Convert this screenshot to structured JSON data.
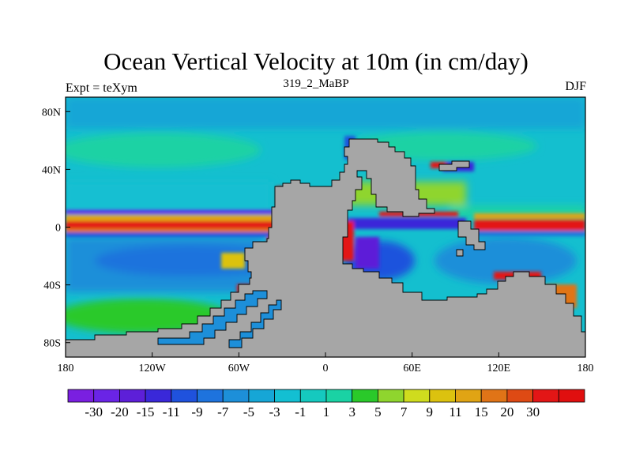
{
  "title": "Ocean Vertical Velocity at 10m (in cm/day)",
  "left_label": "Expt = teXym",
  "center_label": "319_2_MaBP",
  "right_label": "DJF",
  "map": {
    "land_color": "#a6a6a6",
    "ocean_background": "#14bfcf",
    "lon_range": [
      -180,
      180
    ],
    "lat_range": [
      -90,
      90
    ],
    "lon_ticks": [
      {
        "value": -180,
        "label": "180"
      },
      {
        "value": -120,
        "label": "120W"
      },
      {
        "value": -60,
        "label": "60W"
      },
      {
        "value": 0,
        "label": "0"
      },
      {
        "value": 60,
        "label": "60E"
      },
      {
        "value": 120,
        "label": "120E"
      },
      {
        "value": 180,
        "label": "180"
      }
    ],
    "lat_ticks": [
      {
        "value": 80,
        "label": "80N"
      },
      {
        "value": 40,
        "label": "40N"
      },
      {
        "value": 0,
        "label": "0"
      },
      {
        "value": -40,
        "label": "40S"
      },
      {
        "value": -80,
        "label": "80S"
      }
    ]
  },
  "colorbar": {
    "colors": [
      "#7a1fe0",
      "#6a24e6",
      "#5d1fd8",
      "#3a28d9",
      "#1f52dd",
      "#1e73dd",
      "#1d8fd9",
      "#16a6d6",
      "#13bfd2",
      "#15c9bf",
      "#1ad2a4",
      "#2ac92a",
      "#8fd52e",
      "#cfdc1e",
      "#dcc20f",
      "#e0a414",
      "#e07417",
      "#de4a14",
      "#e31616",
      "#e00f0f"
    ],
    "labels": [
      "-30",
      "-20",
      "-15",
      "-11",
      "-9",
      "-7",
      "-5",
      "-3",
      "-1",
      "1",
      "3",
      "5",
      "7",
      "9",
      "11",
      "15",
      "20",
      "30"
    ]
  }
}
